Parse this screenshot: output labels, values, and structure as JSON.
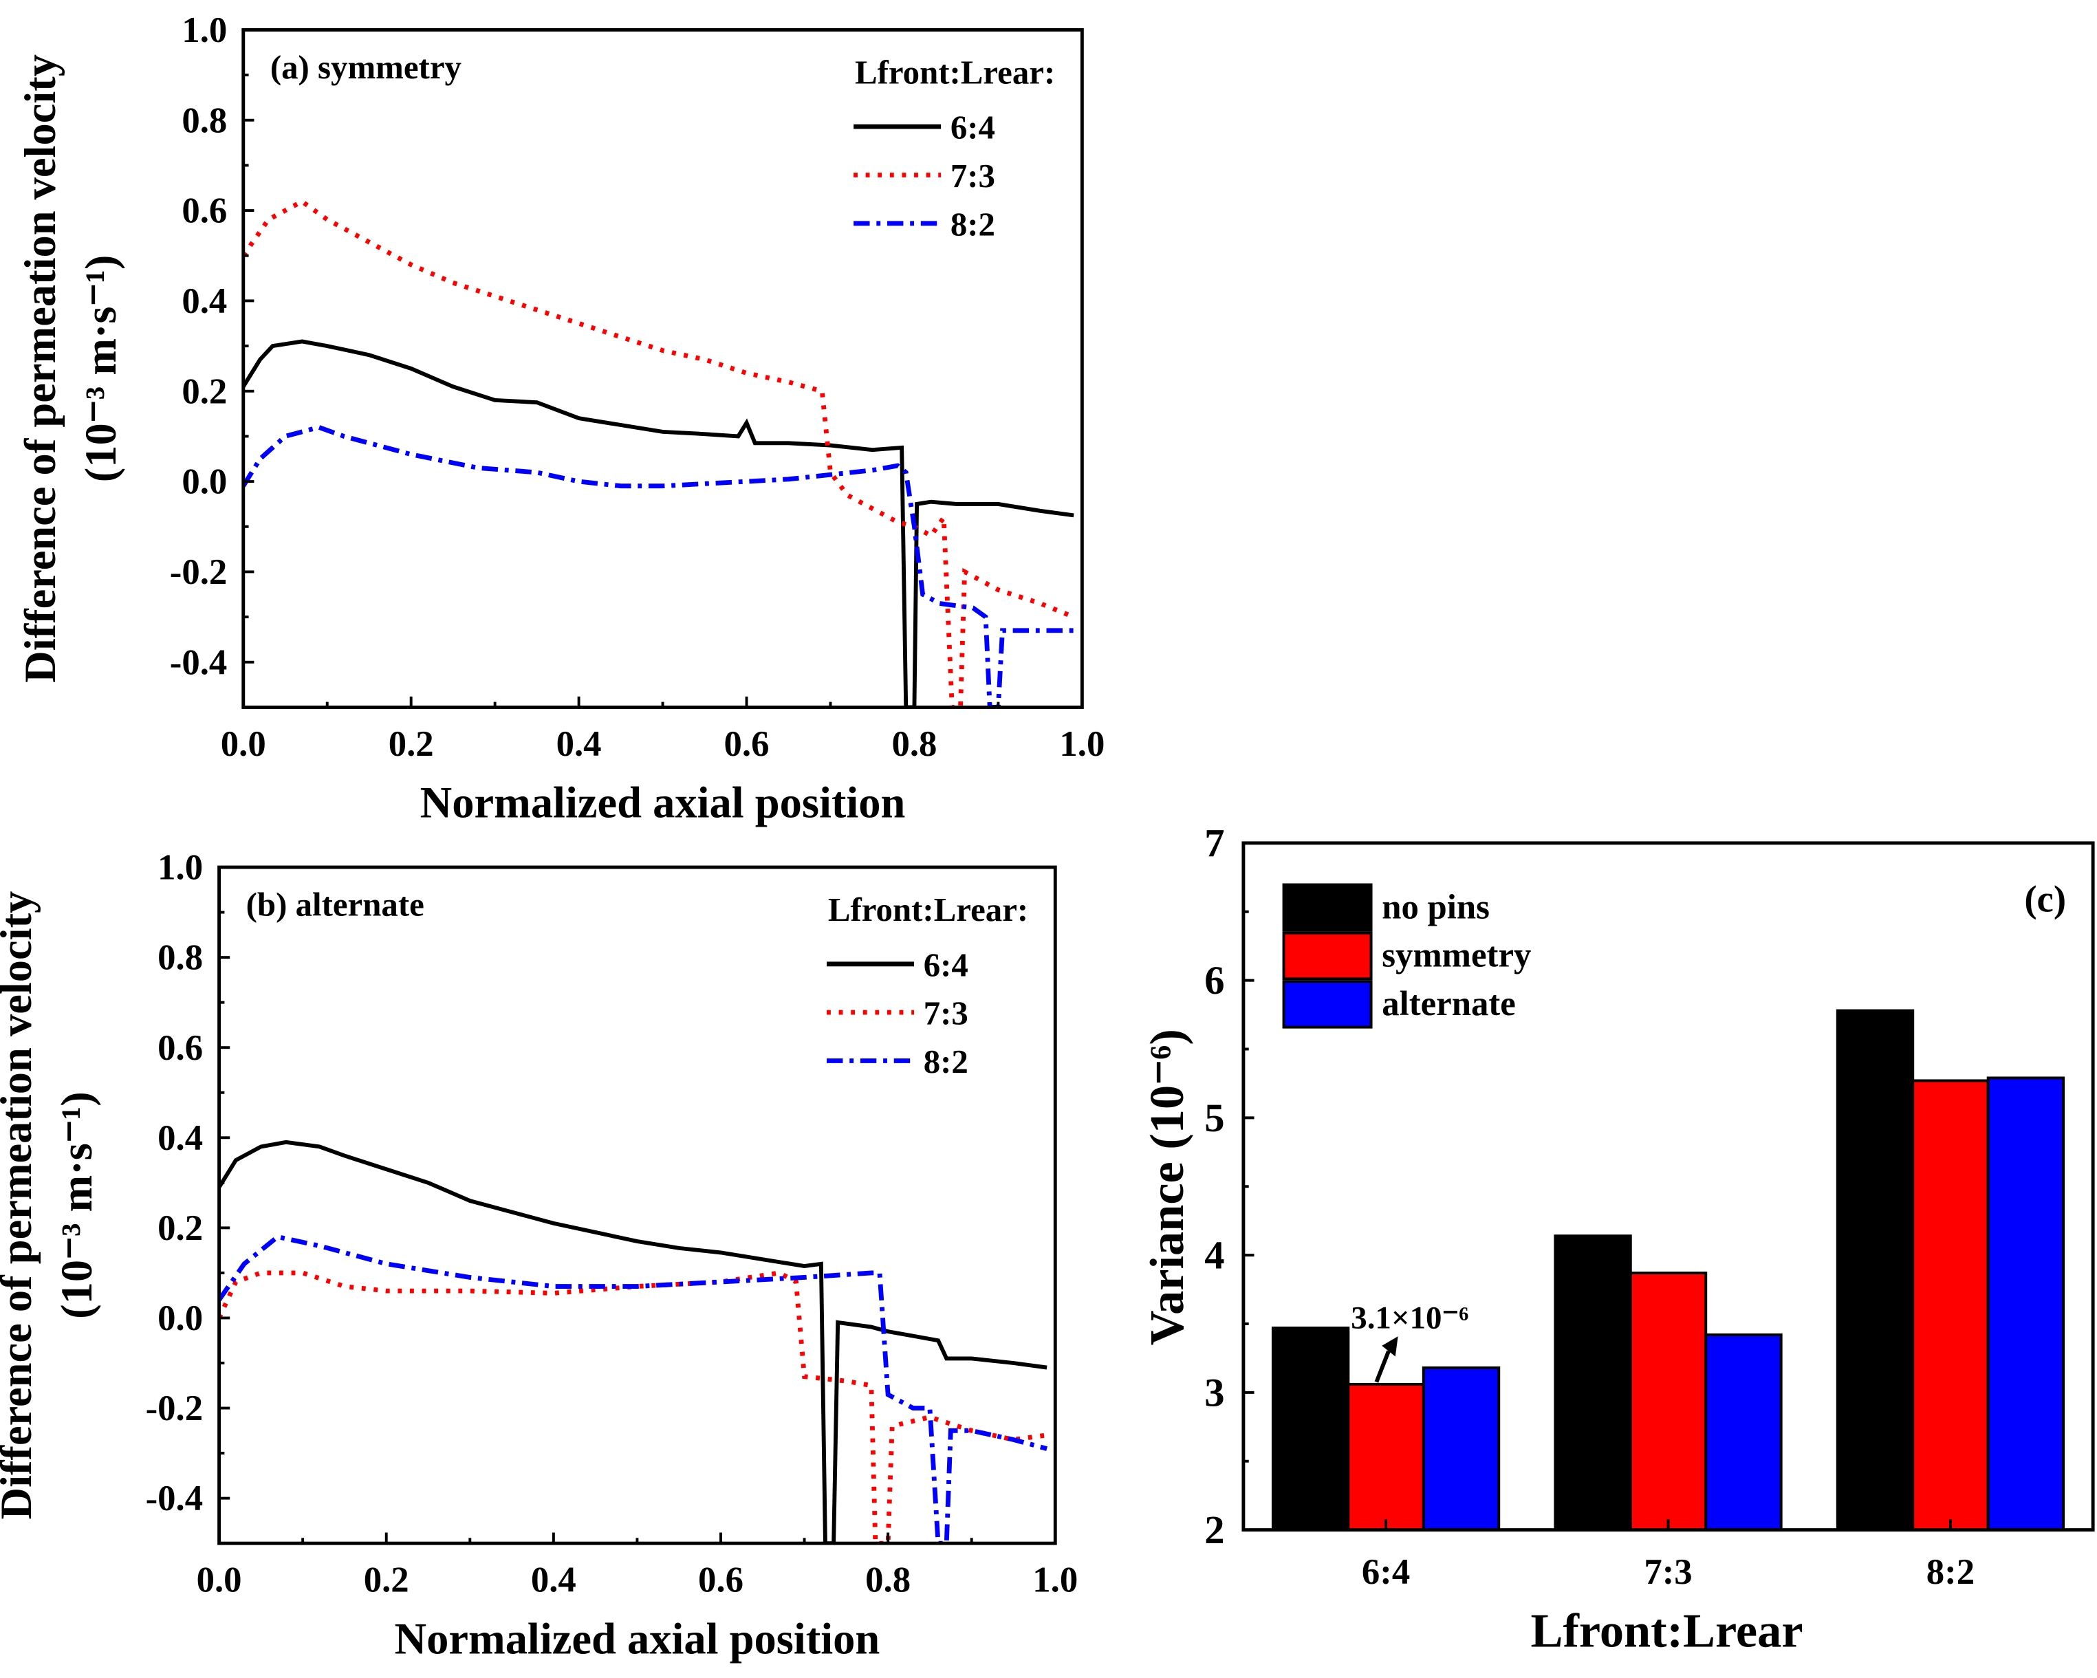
{
  "chart_data": [
    {
      "type": "line",
      "panel_label": "(a) symmetry",
      "xlabel": "Normalized axial position",
      "ylabel_line1": "Difference of permeation velocity",
      "ylabel_line2": "(10⁻³ m·s⁻¹)",
      "xlim": [
        0,
        1
      ],
      "ylim": [
        -0.5,
        1.0
      ],
      "xticks": [
        "0.0",
        "0.2",
        "0.4",
        "0.6",
        "0.8",
        "1.0"
      ],
      "yticks": [
        "-0.4",
        "-0.2",
        "0.0",
        "0.2",
        "0.4",
        "0.6",
        "0.8",
        "1.0"
      ],
      "legend_title": "Lfront:Lrear:",
      "legend_placement": "top-right",
      "series": [
        {
          "name": "6:4",
          "color": "#000000",
          "style": "solid",
          "points": [
            [
              0,
              0.21
            ],
            [
              0.02,
              0.27
            ],
            [
              0.035,
              0.3
            ],
            [
              0.07,
              0.31
            ],
            [
              0.1,
              0.3
            ],
            [
              0.15,
              0.28
            ],
            [
              0.2,
              0.25
            ],
            [
              0.25,
              0.21
            ],
            [
              0.3,
              0.18
            ],
            [
              0.35,
              0.175
            ],
            [
              0.4,
              0.14
            ],
            [
              0.45,
              0.125
            ],
            [
              0.5,
              0.11
            ],
            [
              0.55,
              0.105
            ],
            [
              0.59,
              0.1
            ],
            [
              0.6,
              0.13
            ],
            [
              0.61,
              0.085
            ],
            [
              0.65,
              0.085
            ],
            [
              0.7,
              0.08
            ],
            [
              0.75,
              0.07
            ],
            [
              0.785,
              0.075
            ],
            [
              0.79,
              -0.5
            ],
            [
              0.8,
              -0.5
            ],
            [
              0.803,
              -0.05
            ],
            [
              0.82,
              -0.045
            ],
            [
              0.85,
              -0.05
            ],
            [
              0.9,
              -0.05
            ],
            [
              0.95,
              -0.065
            ],
            [
              0.99,
              -0.075
            ]
          ]
        },
        {
          "name": "7:3",
          "color": "#ff0000",
          "style": "dot",
          "points": [
            [
              0,
              0.5
            ],
            [
              0.03,
              0.58
            ],
            [
              0.07,
              0.62
            ],
            [
              0.1,
              0.58
            ],
            [
              0.15,
              0.53
            ],
            [
              0.2,
              0.48
            ],
            [
              0.25,
              0.44
            ],
            [
              0.3,
              0.41
            ],
            [
              0.35,
              0.38
            ],
            [
              0.4,
              0.35
            ],
            [
              0.45,
              0.32
            ],
            [
              0.5,
              0.29
            ],
            [
              0.55,
              0.27
            ],
            [
              0.6,
              0.24
            ],
            [
              0.65,
              0.22
            ],
            [
              0.69,
              0.2
            ],
            [
              0.7,
              0.02
            ],
            [
              0.72,
              -0.03
            ],
            [
              0.78,
              -0.09
            ],
            [
              0.8,
              -0.1
            ],
            [
              0.82,
              -0.12
            ],
            [
              0.835,
              -0.08
            ],
            [
              0.845,
              -0.5
            ],
            [
              0.855,
              -0.5
            ],
            [
              0.86,
              -0.2
            ],
            [
              0.9,
              -0.24
            ],
            [
              0.95,
              -0.27
            ],
            [
              0.99,
              -0.3
            ]
          ]
        },
        {
          "name": "8:2",
          "color": "#0000ff",
          "style": "dashdot",
          "points": [
            [
              0,
              -0.01
            ],
            [
              0.02,
              0.05
            ],
            [
              0.05,
              0.1
            ],
            [
              0.09,
              0.12
            ],
            [
              0.12,
              0.1
            ],
            [
              0.2,
              0.06
            ],
            [
              0.28,
              0.03
            ],
            [
              0.35,
              0.02
            ],
            [
              0.4,
              0.0
            ],
            [
              0.45,
              -0.01
            ],
            [
              0.5,
              -0.01
            ],
            [
              0.55,
              -0.005
            ],
            [
              0.6,
              0.0
            ],
            [
              0.65,
              0.005
            ],
            [
              0.7,
              0.015
            ],
            [
              0.75,
              0.025
            ],
            [
              0.78,
              0.035
            ],
            [
              0.79,
              0.02
            ],
            [
              0.8,
              -0.1
            ],
            [
              0.81,
              -0.25
            ],
            [
              0.83,
              -0.27
            ],
            [
              0.87,
              -0.28
            ],
            [
              0.885,
              -0.3
            ],
            [
              0.89,
              -0.5
            ],
            [
              0.9,
              -0.5
            ],
            [
              0.905,
              -0.33
            ],
            [
              0.95,
              -0.33
            ],
            [
              0.99,
              -0.33
            ]
          ]
        }
      ]
    },
    {
      "type": "line",
      "panel_label": "(b) alternate",
      "xlabel": "Normalized axial position",
      "ylabel_line1": "Difference of permeation velocity",
      "ylabel_line2": "(10⁻³ m·s⁻¹)",
      "xlim": [
        0,
        1
      ],
      "ylim": [
        -0.5,
        1.0
      ],
      "xticks": [
        "0.0",
        "0.2",
        "0.4",
        "0.6",
        "0.8",
        "1.0"
      ],
      "yticks": [
        "-0.4",
        "-0.2",
        "0.0",
        "0.2",
        "0.4",
        "0.6",
        "0.8",
        "1.0"
      ],
      "legend_title": "Lfront:Lrear:",
      "legend_placement": "top-right",
      "series": [
        {
          "name": "6:4",
          "color": "#000000",
          "style": "solid",
          "points": [
            [
              0,
              0.29
            ],
            [
              0.02,
              0.35
            ],
            [
              0.05,
              0.38
            ],
            [
              0.08,
              0.39
            ],
            [
              0.12,
              0.38
            ],
            [
              0.15,
              0.36
            ],
            [
              0.2,
              0.33
            ],
            [
              0.25,
              0.3
            ],
            [
              0.3,
              0.26
            ],
            [
              0.35,
              0.235
            ],
            [
              0.4,
              0.21
            ],
            [
              0.45,
              0.19
            ],
            [
              0.5,
              0.17
            ],
            [
              0.55,
              0.155
            ],
            [
              0.6,
              0.145
            ],
            [
              0.65,
              0.13
            ],
            [
              0.7,
              0.115
            ],
            [
              0.72,
              0.12
            ],
            [
              0.725,
              -0.5
            ],
            [
              0.735,
              -0.5
            ],
            [
              0.74,
              -0.01
            ],
            [
              0.78,
              -0.02
            ],
            [
              0.8,
              -0.03
            ],
            [
              0.83,
              -0.04
            ],
            [
              0.86,
              -0.05
            ],
            [
              0.87,
              -0.09
            ],
            [
              0.9,
              -0.09
            ],
            [
              0.95,
              -0.1
            ],
            [
              0.99,
              -0.11
            ]
          ]
        },
        {
          "name": "7:3",
          "color": "#ff0000",
          "style": "dot",
          "points": [
            [
              0,
              0
            ],
            [
              0.02,
              0.08
            ],
            [
              0.05,
              0.1
            ],
            [
              0.1,
              0.1
            ],
            [
              0.15,
              0.07
            ],
            [
              0.2,
              0.06
            ],
            [
              0.3,
              0.06
            ],
            [
              0.4,
              0.055
            ],
            [
              0.5,
              0.07
            ],
            [
              0.6,
              0.08
            ],
            [
              0.67,
              0.1
            ],
            [
              0.69,
              0.08
            ],
            [
              0.7,
              -0.13
            ],
            [
              0.75,
              -0.14
            ],
            [
              0.78,
              -0.15
            ],
            [
              0.785,
              -0.5
            ],
            [
              0.8,
              -0.5
            ],
            [
              0.805,
              -0.24
            ],
            [
              0.85,
              -0.22
            ],
            [
              0.9,
              -0.25
            ],
            [
              0.95,
              -0.27
            ],
            [
              0.99,
              -0.26
            ]
          ]
        },
        {
          "name": "8:2",
          "color": "#0000ff",
          "style": "dashdot",
          "points": [
            [
              0,
              0.04
            ],
            [
              0.03,
              0.12
            ],
            [
              0.07,
              0.18
            ],
            [
              0.12,
              0.16
            ],
            [
              0.2,
              0.12
            ],
            [
              0.3,
              0.09
            ],
            [
              0.4,
              0.07
            ],
            [
              0.5,
              0.07
            ],
            [
              0.6,
              0.08
            ],
            [
              0.7,
              0.09
            ],
            [
              0.78,
              0.1
            ],
            [
              0.79,
              0.1
            ],
            [
              0.8,
              -0.17
            ],
            [
              0.83,
              -0.2
            ],
            [
              0.85,
              -0.2
            ],
            [
              0.86,
              -0.5
            ],
            [
              0.87,
              -0.5
            ],
            [
              0.875,
              -0.25
            ],
            [
              0.9,
              -0.25
            ],
            [
              0.95,
              -0.27
            ],
            [
              0.99,
              -0.29
            ]
          ]
        }
      ]
    },
    {
      "type": "bar",
      "panel_label": "(c)",
      "xlabel": "Lfront:Lrear",
      "ylabel": "Variance (10⁻⁶)",
      "ylim": [
        2,
        7
      ],
      "yticks": [
        "2",
        "3",
        "4",
        "5",
        "6",
        "7"
      ],
      "categories": [
        "6:4",
        "7:3",
        "8:2"
      ],
      "legend_placement": "top-left",
      "series": [
        {
          "name": "no pins",
          "color": "#000000",
          "values": [
            3.47,
            4.14,
            5.78
          ]
        },
        {
          "name": "symmetry",
          "color": "#ff0000",
          "values": [
            3.06,
            3.87,
            5.27
          ]
        },
        {
          "name": "alternate",
          "color": "#0000ff",
          "values": [
            3.18,
            3.42,
            5.29
          ]
        }
      ],
      "annotation": "3.1×10⁻⁶"
    }
  ]
}
